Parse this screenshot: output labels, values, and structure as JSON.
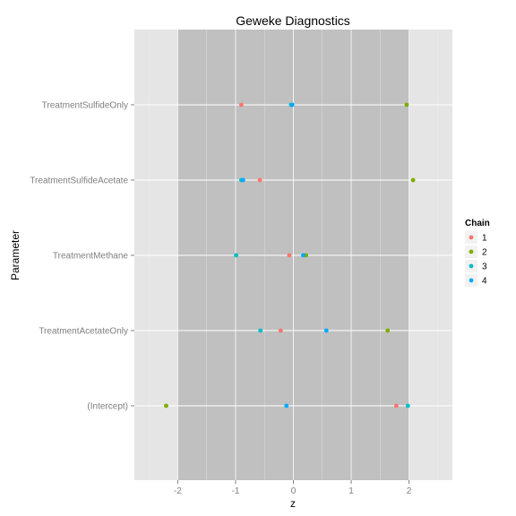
{
  "chart_data": {
    "type": "scatter",
    "title": "Geweke Diagnostics",
    "xlabel": "z",
    "ylabel": "Parameter",
    "xlim": [
      -2.75,
      2.75
    ],
    "xticks": [
      -2,
      -1,
      0,
      1,
      2
    ],
    "categories": [
      "(Intercept)",
      "TreatmentAcetateOnly",
      "TreatmentMethane",
      "TreatmentSulfideAcetate",
      "TreatmentSulfideOnly"
    ],
    "band": {
      "from": -2,
      "to": 2
    },
    "grid": true,
    "legend": {
      "title": "Chain",
      "position": "right"
    },
    "series": [
      {
        "name": "1",
        "color": "#F8766D",
        "values": [
          1.78,
          -0.22,
          -0.07,
          -0.58,
          -0.9
        ]
      },
      {
        "name": "2",
        "color": "#7CAE00",
        "values": [
          -2.2,
          1.63,
          0.22,
          2.07,
          1.96
        ]
      },
      {
        "name": "3",
        "color": "#00BFC4",
        "values": [
          1.98,
          -0.57,
          -0.99,
          -0.9,
          -0.04
        ]
      },
      {
        "name": "4",
        "color": "#00A9FF",
        "values": [
          -0.12,
          0.57,
          0.17,
          -0.87,
          -0.02
        ]
      }
    ],
    "panel_color": "#E5E5E5",
    "band_color": "#C0C0C0"
  }
}
